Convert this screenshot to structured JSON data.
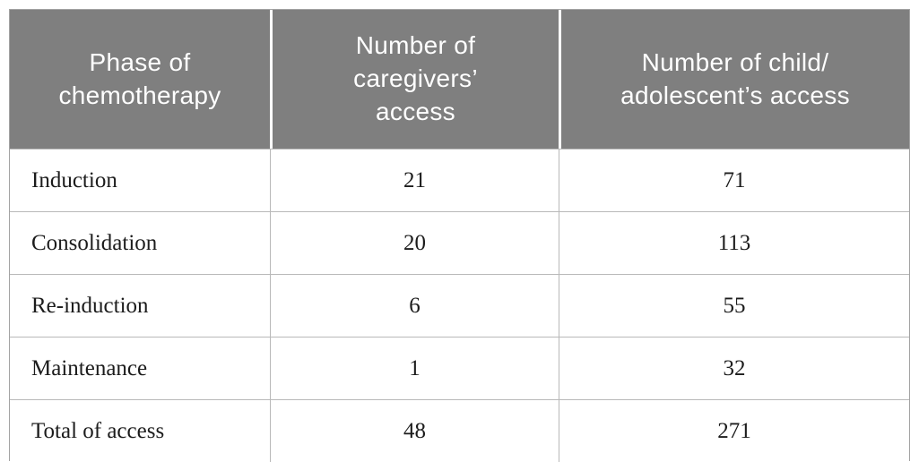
{
  "table": {
    "columns": [
      {
        "label": "Phase of\nchemotherapy"
      },
      {
        "label": "Number of\ncaregivers’\naccess"
      },
      {
        "label": "Number of child/\nadolescent’s access"
      }
    ],
    "rows": [
      {
        "phase": "Induction",
        "caregivers": "21",
        "child": "71"
      },
      {
        "phase": "Consolidation",
        "caregivers": "20",
        "child": "113"
      },
      {
        "phase": "Re-induction",
        "caregivers": "6",
        "child": "55"
      },
      {
        "phase": "Maintenance",
        "caregivers": "1",
        "child": "32"
      },
      {
        "phase": "Total of access",
        "caregivers": "48",
        "child": "271"
      }
    ]
  },
  "colors": {
    "header_bg": "#7f7f7f",
    "header_text": "#ffffff",
    "body_text": "#1c1c1c",
    "grid_line": "#b9b9b9",
    "outer_border": "#a3a3a3"
  }
}
